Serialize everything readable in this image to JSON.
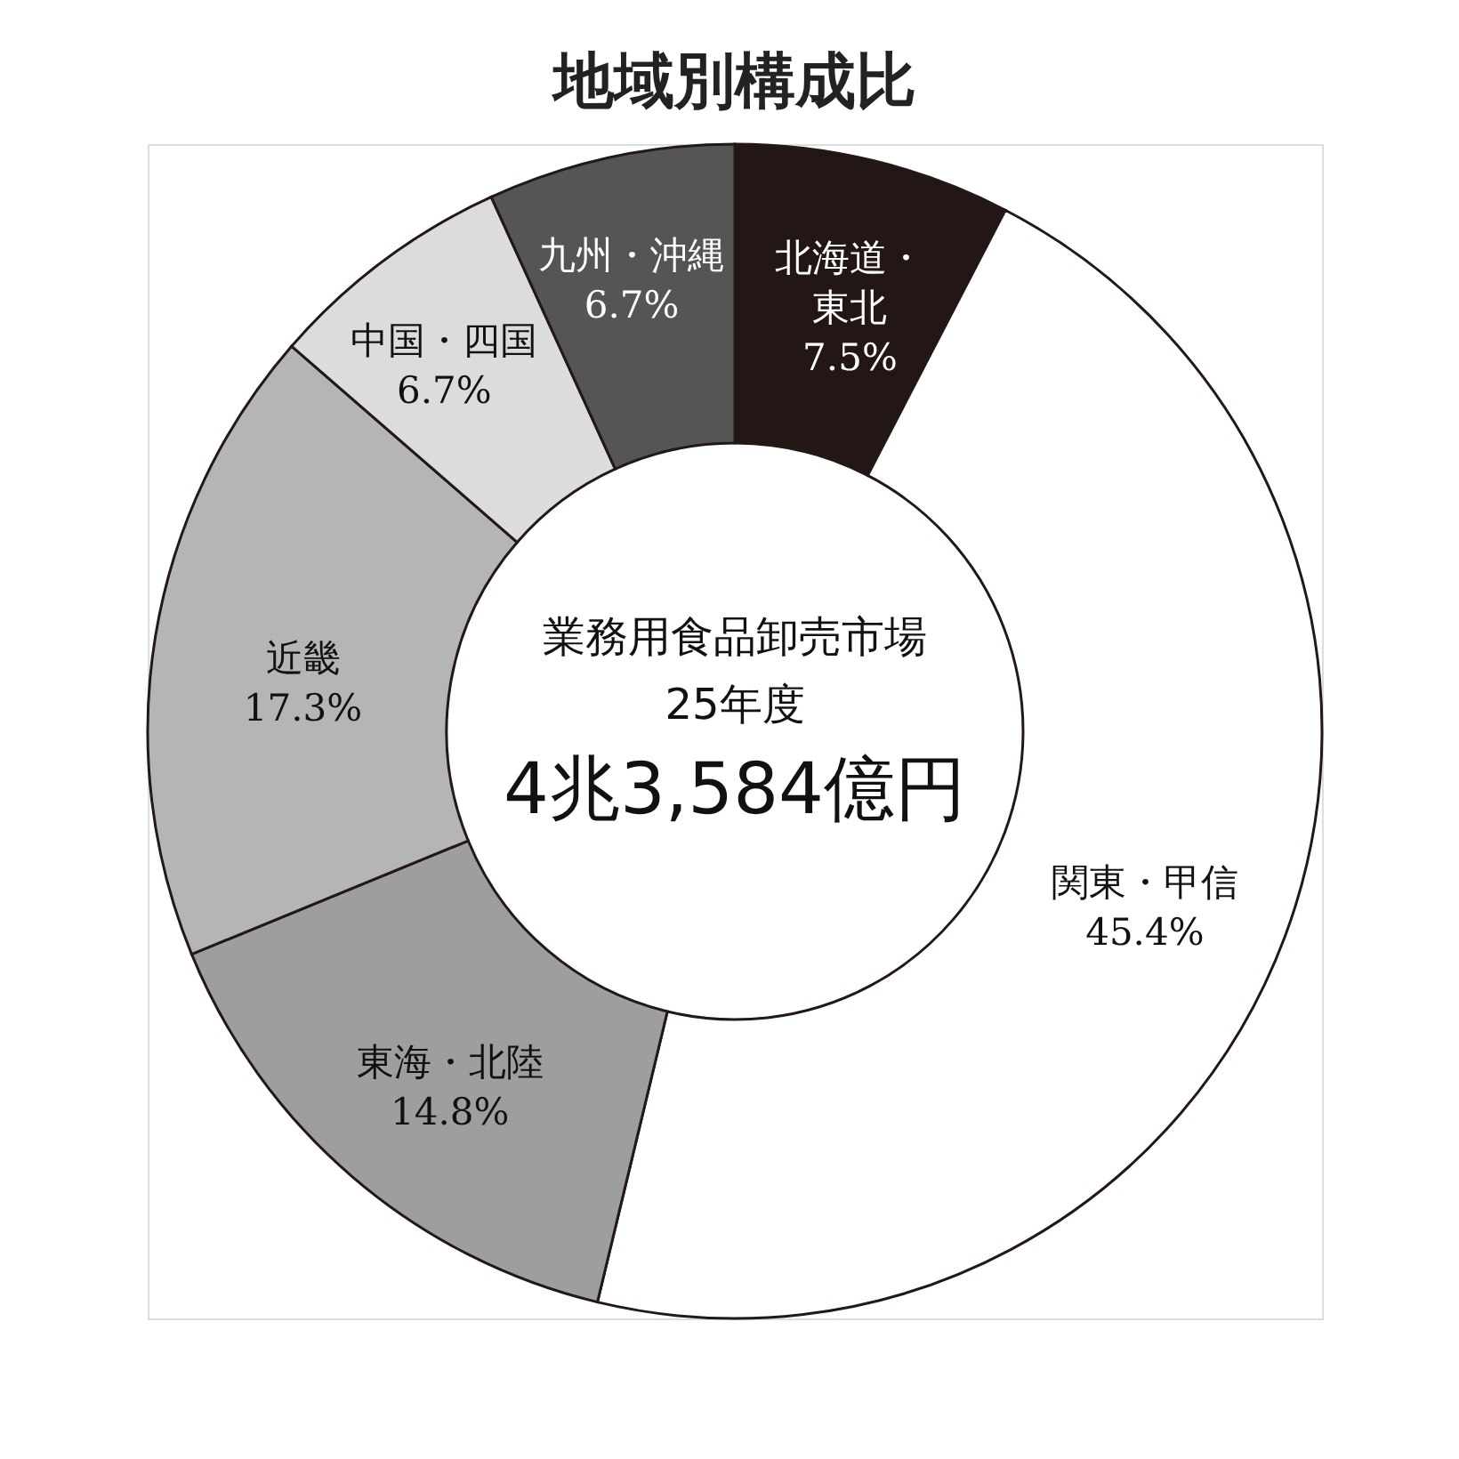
{
  "chart_data": {
    "type": "donut",
    "title": "地域別構成比",
    "categories": [
      "北海道・東北",
      "関東・甲信",
      "東海・北陸",
      "近畿",
      "中国・四国",
      "九州・沖縄"
    ],
    "values": [
      7.5,
      45.4,
      14.8,
      17.3,
      6.7,
      6.7
    ],
    "value_labels": [
      "7.5%",
      "45.4%",
      "14.8%",
      "17.3%",
      "6.7%",
      "6.7%"
    ],
    "colors": [
      "#221714",
      "#ffffff",
      "#9e9e9e",
      "#b5b5b5",
      "#dcdcdc",
      "#555555"
    ],
    "annotations": [
      "業務用食品卸売市場",
      "25年度",
      "4兆3,584億円"
    ],
    "legend": false
  }
}
